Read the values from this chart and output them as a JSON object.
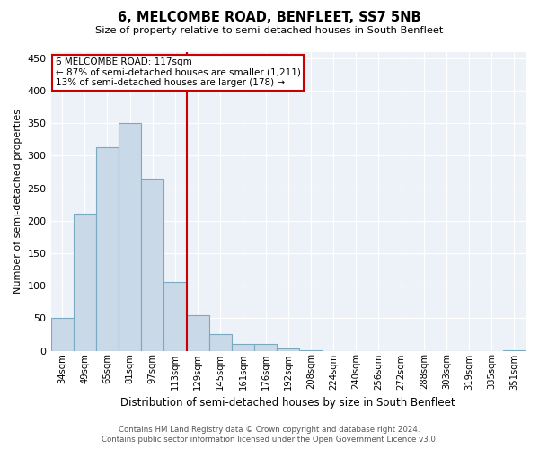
{
  "title": "6, MELCOMBE ROAD, BENFLEET, SS7 5NB",
  "subtitle": "Size of property relative to semi-detached houses in South Benfleet",
  "xlabel": "Distribution of semi-detached houses by size in South Benfleet",
  "ylabel": "Number of semi-detached properties",
  "categories": [
    "34sqm",
    "49sqm",
    "65sqm",
    "81sqm",
    "97sqm",
    "113sqm",
    "129sqm",
    "145sqm",
    "161sqm",
    "176sqm",
    "192sqm",
    "208sqm",
    "224sqm",
    "240sqm",
    "256sqm",
    "272sqm",
    "288sqm",
    "303sqm",
    "319sqm",
    "335sqm",
    "351sqm"
  ],
  "values": [
    50,
    210,
    313,
    350,
    265,
    105,
    55,
    25,
    10,
    10,
    3,
    1,
    0,
    0,
    0,
    0,
    0,
    0,
    0,
    0,
    1
  ],
  "bar_color": "#c9d9e8",
  "bar_edge_color": "#7aaabf",
  "annotation_text_line1": "6 MELCOMBE ROAD: 117sqm",
  "annotation_text_line2": "← 87% of semi-detached houses are smaller (1,211)",
  "annotation_text_line3": "13% of semi-detached houses are larger (178) →",
  "annotation_box_color": "#ffffff",
  "annotation_box_edge_color": "#cc0000",
  "property_line_color": "#cc0000",
  "ylim": [
    0,
    460
  ],
  "yticks": [
    0,
    50,
    100,
    150,
    200,
    250,
    300,
    350,
    400,
    450
  ],
  "background_color": "#edf2f8",
  "grid_color": "#ffffff",
  "footer_line1": "Contains HM Land Registry data © Crown copyright and database right 2024.",
  "footer_line2": "Contains public sector information licensed under the Open Government Licence v3.0."
}
